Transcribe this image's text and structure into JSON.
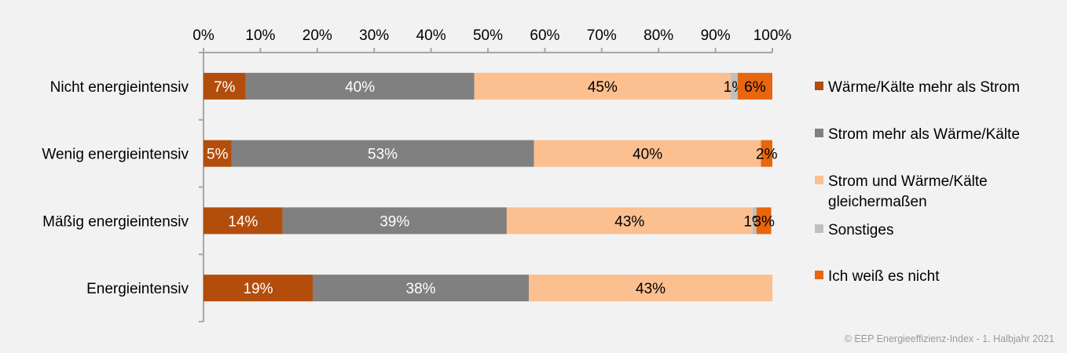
{
  "chart_data": {
    "type": "bar",
    "orientation": "horizontal",
    "stacked": "percent",
    "categories": [
      "Nicht energieintensiv",
      "Wenig energieintensiv",
      "Mäßig energieintensiv",
      "Energieintensiv"
    ],
    "series": [
      {
        "name": "Wärme/Kälte mehr als Strom",
        "color": "#b34d0c",
        "values": [
          7.4,
          4.9,
          13.9,
          19.2
        ],
        "labels": [
          "7%",
          "5%",
          "14%",
          "19%"
        ],
        "label_color": "#ffffff"
      },
      {
        "name": "Strom mehr als Wärme/Kälte",
        "color": "#808080",
        "values": [
          40.2,
          53.2,
          39.4,
          38.0
        ],
        "labels": [
          "40%",
          "53%",
          "39%",
          "38%"
        ],
        "label_color": "#ffffff"
      },
      {
        "name": "Strom und Wärme/Kälte gleichermaßen",
        "color": "#fbbf90",
        "values": [
          45.1,
          39.9,
          43.2,
          42.8
        ],
        "labels": [
          "45%",
          "40%",
          "43%",
          "43%"
        ],
        "label_color": "#000000"
      },
      {
        "name": "Sonstiges",
        "color": "#bfbfbf",
        "values": [
          1.2,
          0,
          0.7,
          0
        ],
        "labels": [
          "1%",
          "",
          "1%",
          ""
        ],
        "label_color": "#000000"
      },
      {
        "name": "Ich weiß es nicht",
        "color": "#e8660e",
        "values": [
          6.1,
          2.0,
          2.6,
          0
        ],
        "labels": [
          "6%",
          "2%",
          "3%",
          ""
        ],
        "label_color": "#000000"
      }
    ],
    "xlim": [
      0,
      100
    ],
    "xticks": [
      "0%",
      "10%",
      "20%",
      "30%",
      "40%",
      "50%",
      "60%",
      "70%",
      "80%",
      "90%",
      "100%"
    ],
    "x_axis_position": "top",
    "grid": false,
    "legend_position": "right",
    "legend_entries": [
      [
        "Wärme/Kälte mehr als Strom"
      ],
      [
        "Strom mehr als Wärme/Kälte"
      ],
      [
        "Strom und Wärme/Kälte",
        "gleichermaßen"
      ],
      [
        "Sonstiges"
      ],
      [
        "Ich weiß es nicht"
      ]
    ]
  },
  "footer": {
    "copyright": "© EEP Energieeffizienz-Index - 1. Halbjahr 2021"
  },
  "colors": {
    "background": "#f2f2f2",
    "axis": "#a6a6a6"
  }
}
